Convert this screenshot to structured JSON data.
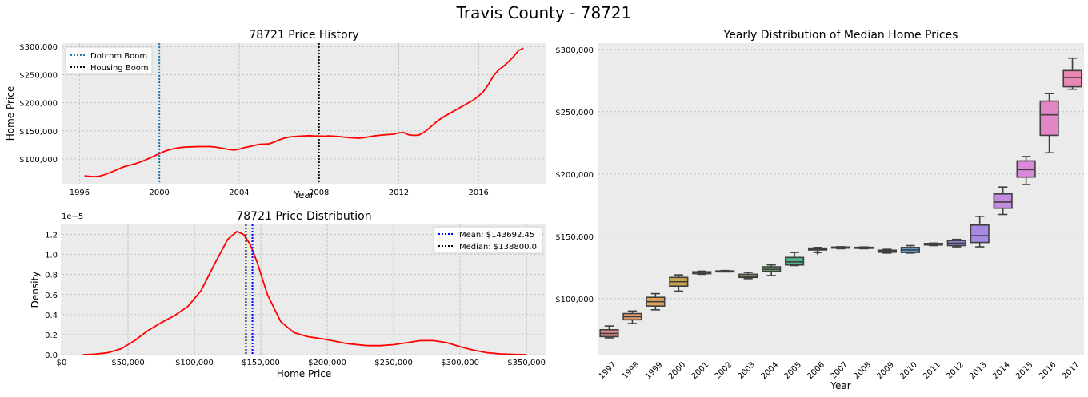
{
  "figure_title": "Travis County - 78721",
  "colors": {
    "background": "#ffffff",
    "axes_face": "#ebebeb",
    "grid": "#bdbdbd",
    "line": "#ff0000",
    "dotcom": "#1f77b4",
    "housing": "#000000",
    "mean": "#0000ff",
    "median": "#000000"
  },
  "chart_data": [
    {
      "type": "line",
      "title": "78721 Price History",
      "xlabel": "Year",
      "ylabel": "Home Price",
      "xlim": [
        1995.1,
        2019.4
      ],
      "ylim": [
        56000,
        306000
      ],
      "xticks": [
        1996,
        2000,
        2004,
        2008,
        2012,
        2016
      ],
      "xtick_labels": [
        "1996",
        "2000",
        "2004",
        "2008",
        "2012",
        "2016"
      ],
      "yticks": [
        100000,
        150000,
        200000,
        250000,
        300000
      ],
      "ytick_labels": [
        "$100,000",
        "$150,000",
        "$200,000",
        "$250,000",
        "$300,000"
      ],
      "grid": true,
      "legend_position": "upper left",
      "series": [
        {
          "name": "",
          "color": "#ff0000",
          "x": [
            1996.25,
            1996.5,
            1996.75,
            1997.0,
            1997.25,
            1997.5,
            1997.75,
            1998.0,
            1998.25,
            1998.5,
            1998.75,
            1999.0,
            1999.25,
            1999.5,
            1999.75,
            2000.0,
            2000.25,
            2000.5,
            2000.75,
            2001.0,
            2001.25,
            2001.5,
            2001.75,
            2002.0,
            2002.25,
            2002.5,
            2002.75,
            2003.0,
            2003.25,
            2003.5,
            2003.75,
            2004.0,
            2004.25,
            2004.5,
            2004.75,
            2005.0,
            2005.25,
            2005.5,
            2005.75,
            2006.0,
            2006.25,
            2006.5,
            2006.75,
            2007.0,
            2007.25,
            2007.5,
            2007.75,
            2008.0,
            2008.25,
            2008.5,
            2008.75,
            2009.0,
            2009.25,
            2009.5,
            2009.75,
            2010.0,
            2010.25,
            2010.5,
            2010.75,
            2011.0,
            2011.25,
            2011.5,
            2011.75,
            2012.0,
            2012.25,
            2012.5,
            2012.75,
            2013.0,
            2013.25,
            2013.5,
            2013.75,
            2014.0,
            2014.25,
            2014.5,
            2014.75,
            2015.0,
            2015.25,
            2015.5,
            2015.75,
            2016.0,
            2016.25,
            2016.5,
            2016.75,
            2017.0,
            2017.25,
            2017.5,
            2017.75,
            2018.0,
            2018.25
          ],
          "y": [
            70000,
            69000,
            68500,
            69500,
            72000,
            75500,
            79000,
            83000,
            86500,
            89000,
            91000,
            94000,
            97500,
            101500,
            105500,
            109500,
            113500,
            116500,
            118500,
            120000,
            121000,
            121500,
            121800,
            122000,
            122000,
            122000,
            121500,
            120000,
            118500,
            117000,
            116000,
            117500,
            120000,
            122000,
            124000,
            126000,
            126500,
            127000,
            130000,
            134000,
            137000,
            139000,
            140000,
            140500,
            141000,
            141500,
            141000,
            140800,
            140500,
            141000,
            140500,
            140000,
            139000,
            138000,
            137500,
            137000,
            138000,
            139500,
            141000,
            142000,
            143000,
            143500,
            144000,
            146500,
            147000,
            143000,
            142000,
            142500,
            147000,
            154000,
            162000,
            169000,
            175000,
            180000,
            185000,
            190000,
            195000,
            200000,
            205000,
            212000,
            220000,
            233000,
            248000,
            258000,
            265000,
            273000,
            282000,
            293000,
            297000
          ]
        }
      ],
      "vlines": [
        {
          "name": "Dotcom Boom",
          "x": 2000,
          "color": "#1f77b4",
          "style": "dotted"
        },
        {
          "name": "Housing Boom",
          "x": 2008,
          "color": "#000000",
          "style": "dotted"
        }
      ]
    },
    {
      "type": "line",
      "title": "78721 Price Distribution",
      "xlabel": "Home Price",
      "ylabel": "Density",
      "offset_label": "1e−5",
      "xlim": [
        0,
        365000
      ],
      "ylim": [
        0,
        1.3
      ],
      "xticks": [
        0,
        50000,
        100000,
        150000,
        200000,
        250000,
        300000,
        350000
      ],
      "xtick_labels": [
        "$0",
        "$50,000",
        "$100,000",
        "$150,000",
        "$200,000",
        "$250,000",
        "$300,000",
        "$350,000"
      ],
      "yticks": [
        0,
        0.2,
        0.4,
        0.6,
        0.8,
        1.0,
        1.2
      ],
      "ytick_labels": [
        "0.0",
        "0.2",
        "0.4",
        "0.6",
        "0.8",
        "1.0",
        "1.2"
      ],
      "grid": true,
      "legend_position": "upper right",
      "series": [
        {
          "name": "",
          "color": "#ff0000",
          "x": [
            16000,
            25000,
            35000,
            45000,
            55000,
            65000,
            75000,
            85000,
            95000,
            105000,
            115000,
            125000,
            132000,
            137000,
            142000,
            147000,
            155000,
            165000,
            175000,
            185000,
            200000,
            215000,
            230000,
            240000,
            250000,
            260000,
            270000,
            280000,
            290000,
            300000,
            310000,
            320000,
            330000,
            340000,
            350000
          ],
          "y": [
            0.0,
            0.005,
            0.02,
            0.06,
            0.14,
            0.24,
            0.32,
            0.39,
            0.48,
            0.64,
            0.9,
            1.15,
            1.23,
            1.2,
            1.1,
            0.93,
            0.6,
            0.33,
            0.22,
            0.18,
            0.15,
            0.11,
            0.09,
            0.09,
            0.1,
            0.12,
            0.14,
            0.14,
            0.12,
            0.08,
            0.045,
            0.02,
            0.008,
            0.002,
            0.0
          ]
        }
      ],
      "vlines": [
        {
          "name": "Mean: $143692.45",
          "x": 143692.45,
          "color": "#0000ff",
          "style": "dotted"
        },
        {
          "name": "Median: $138800.0",
          "x": 138800.0,
          "color": "#000000",
          "style": "dotted"
        }
      ]
    },
    {
      "type": "box",
      "title": "Yearly Distribution of Median Home Prices",
      "xlabel": "Year",
      "ylabel": "",
      "ylim": [
        55000,
        305000
      ],
      "yticks": [
        100000,
        150000,
        200000,
        250000,
        300000
      ],
      "ytick_labels": [
        "$100,000",
        "$150,000",
        "$200,000",
        "$250,000",
        "$300,000"
      ],
      "grid": true,
      "categories": [
        "1997",
        "1998",
        "1999",
        "2000",
        "2001",
        "2002",
        "2003",
        "2004",
        "2005",
        "2006",
        "2007",
        "2008",
        "2009",
        "2010",
        "2011",
        "2012",
        "2013",
        "2014",
        "2015",
        "2016",
        "2017"
      ],
      "boxes": [
        {
          "min": 68500,
          "q1": 69500,
          "median": 72000,
          "q3": 75000,
          "max": 78000,
          "color": "#e08a8a"
        },
        {
          "min": 80000,
          "q1": 83000,
          "median": 85500,
          "q3": 88000,
          "max": 90000,
          "color": "#e39a6f"
        },
        {
          "min": 91000,
          "q1": 94000,
          "median": 97500,
          "q3": 101000,
          "max": 104000,
          "color": "#e2a35a"
        },
        {
          "min": 106000,
          "q1": 110000,
          "median": 113500,
          "q3": 117000,
          "max": 119000,
          "color": "#c9a44e"
        },
        {
          "min": 119500,
          "q1": 120000,
          "median": 121000,
          "q3": 121500,
          "max": 122000,
          "color": "#b9b257"
        },
        {
          "min": 121500,
          "q1": 121800,
          "median": 122000,
          "q3": 122200,
          "max": 122500,
          "color": "#a3b356"
        },
        {
          "min": 116000,
          "q1": 117000,
          "median": 118000,
          "q3": 119500,
          "max": 121000,
          "color": "#8cba5e"
        },
        {
          "min": 118500,
          "q1": 122000,
          "median": 123500,
          "q3": 125500,
          "max": 127000,
          "color": "#6fbf6f"
        },
        {
          "min": 126500,
          "q1": 127000,
          "median": 129500,
          "q3": 133000,
          "max": 137000,
          "color": "#4fb587"
        },
        {
          "min": 137000,
          "q1": 139000,
          "median": 139800,
          "q3": 140500,
          "max": 141000,
          "color": "#4fb59e",
          "outliers": [
            136000
          ]
        },
        {
          "min": 140000,
          "q1": 140500,
          "median": 141000,
          "q3": 141300,
          "max": 141600,
          "color": "#52b3ac"
        },
        {
          "min": 140000,
          "q1": 140500,
          "median": 140800,
          "q3": 141100,
          "max": 141400,
          "color": "#55aeb9"
        },
        {
          "min": 136500,
          "q1": 137200,
          "median": 138000,
          "q3": 138800,
          "max": 139500,
          "color": "#5aa7c6"
        },
        {
          "min": 136500,
          "q1": 137000,
          "median": 139000,
          "q3": 141000,
          "max": 142500,
          "color": "#5e9dd3"
        },
        {
          "min": 142500,
          "q1": 143000,
          "median": 143500,
          "q3": 144200,
          "max": 144500,
          "color": "#7f93dc"
        },
        {
          "min": 141500,
          "q1": 142500,
          "median": 144500,
          "q3": 146500,
          "max": 147500,
          "color": "#8f8ad9"
        },
        {
          "min": 141500,
          "q1": 145000,
          "median": 150500,
          "q3": 159000,
          "max": 166000,
          "color": "#a48ae0"
        },
        {
          "min": 167500,
          "q1": 172500,
          "median": 177500,
          "q3": 184000,
          "max": 189500,
          "color": "#c18be0"
        },
        {
          "min": 191500,
          "q1": 197500,
          "median": 203500,
          "q3": 210500,
          "max": 214000,
          "color": "#d98ad8"
        },
        {
          "min": 217000,
          "q1": 231000,
          "median": 247500,
          "q3": 258500,
          "max": 264500,
          "color": "#e386c8"
        },
        {
          "min": 268000,
          "q1": 270000,
          "median": 277500,
          "q3": 283000,
          "max": 293000,
          "color": "#e886b4"
        }
      ]
    }
  ]
}
